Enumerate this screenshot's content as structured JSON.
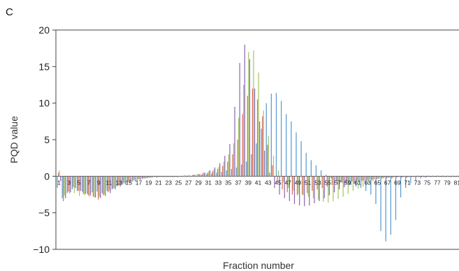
{
  "panel_label": "C",
  "chart_data": {
    "type": "bar",
    "xlabel": "Fraction number",
    "ylabel": "PQD value",
    "ylim": [
      -10,
      20
    ],
    "yticks": [
      -10,
      -5,
      0,
      5,
      10,
      15,
      20
    ],
    "ytick_labels": [
      "−10",
      "−5",
      "0",
      "5",
      "10",
      "15",
      "20"
    ],
    "xtick_labels": [
      "1",
      "3",
      "5",
      "7",
      "9",
      "11",
      "13",
      "15",
      "17",
      "19",
      "21",
      "23",
      "25",
      "27",
      "29",
      "31",
      "33",
      "35",
      "37",
      "39",
      "41",
      "43",
      "45",
      "47",
      "49",
      "51",
      "53",
      "55",
      "57",
      "59",
      "61",
      "63",
      "65",
      "67",
      "69",
      "71",
      "73",
      "75",
      "77",
      "79",
      "81"
    ],
    "x": [
      1,
      2,
      3,
      4,
      5,
      6,
      7,
      8,
      9,
      10,
      11,
      12,
      13,
      14,
      15,
      16,
      17,
      18,
      19,
      20,
      21,
      22,
      23,
      24,
      25,
      26,
      27,
      28,
      29,
      30,
      31,
      32,
      33,
      34,
      35,
      36,
      37,
      38,
      39,
      40,
      41,
      42,
      43,
      44,
      45,
      46,
      47,
      48,
      49,
      50,
      51,
      52,
      53,
      54,
      55,
      56,
      57,
      58,
      59,
      60,
      61,
      62,
      63,
      64,
      65,
      66,
      67,
      68,
      69,
      70,
      71,
      72,
      73,
      74,
      75,
      76,
      77,
      78,
      79,
      80,
      81
    ],
    "series_colors": [
      "#5b9bd0",
      "#e06f5a",
      "#a6c767",
      "#8c6bb5"
    ],
    "series": [
      {
        "values": [
          -1.6,
          -3.0,
          -2.3,
          -1.8,
          -2.0,
          -2.1,
          -2.4,
          -2.2,
          -2.1,
          -2.3,
          -2.0,
          -1.8,
          -1.4,
          -1.2,
          -1.0,
          -0.8,
          -0.6,
          -0.4,
          -0.3,
          -0.2,
          -0.2,
          -0.1,
          -0.1,
          -0.1,
          -0.1,
          -0.1,
          -0.1,
          0.0,
          0.1,
          0.2,
          0.3,
          0.4,
          0.5,
          0.6,
          0.8,
          1.0,
          1.2,
          1.6,
          2.0,
          3.0,
          4.5,
          6.5,
          10.0,
          11.3,
          11.4,
          10.3,
          8.5,
          7.5,
          6.0,
          4.8,
          3.2,
          2.2,
          1.5,
          0.8,
          0.2,
          -0.3,
          -0.6,
          -0.8,
          -1.0,
          -1.2,
          -1.4,
          -1.6,
          -2.0,
          -2.5,
          -3.8,
          -7.5,
          -8.9,
          -8.0,
          -6.0,
          -2.9,
          -1.6,
          -1.0,
          -0.6,
          -0.3,
          -0.2,
          -0.1,
          -0.1,
          -0.1,
          -0.1,
          -0.1,
          -0.1
        ]
      },
      {
        "values": [
          0.5,
          -3.4,
          -2.1,
          -1.5,
          -2.0,
          -2.4,
          -2.6,
          -2.8,
          -3.2,
          -2.6,
          -2.2,
          -1.7,
          -1.3,
          -1.0,
          -0.8,
          -0.6,
          -0.4,
          -0.3,
          -0.2,
          -0.1,
          -0.1,
          -0.1,
          -0.1,
          -0.1,
          -0.1,
          0.0,
          0.1,
          0.2,
          0.3,
          0.4,
          0.5,
          0.7,
          1.0,
          1.4,
          2.0,
          3.0,
          5.0,
          8.5,
          11.0,
          12.0,
          10.5,
          8.2,
          4.3,
          1.5,
          -0.8,
          -1.8,
          -2.2,
          -2.5,
          -2.6,
          -2.5,
          -2.3,
          -2.0,
          -1.8,
          -1.6,
          -1.4,
          -1.2,
          -1.0,
          -0.9,
          -0.8,
          -0.7,
          -0.6,
          -0.6,
          -0.5,
          -0.5,
          -0.4,
          -0.3,
          -0.3,
          -0.3,
          -0.2,
          -0.2,
          -0.2,
          -0.1,
          -0.1,
          -0.1,
          -0.1,
          -0.1,
          -0.1,
          -0.1,
          -0.1,
          -0.1,
          -0.1
        ]
      },
      {
        "values": [
          0.8,
          -2.6,
          -2.4,
          -2.3,
          -2.7,
          -2.6,
          -2.8,
          -2.9,
          -2.8,
          -2.5,
          -2.0,
          -1.6,
          -1.2,
          -0.9,
          -0.7,
          -0.5,
          -0.4,
          -0.3,
          -0.2,
          -0.1,
          -0.1,
          -0.1,
          -0.1,
          -0.1,
          0.0,
          0.1,
          0.1,
          0.2,
          0.3,
          0.5,
          0.7,
          0.9,
          1.3,
          2.0,
          3.0,
          4.5,
          8.0,
          12.5,
          17.0,
          17.2,
          14.2,
          9.0,
          5.5,
          2.8,
          0.8,
          -0.8,
          -1.6,
          -2.0,
          -2.4,
          -2.6,
          -2.8,
          -3.0,
          -3.2,
          -3.5,
          -3.6,
          -3.4,
          -3.1,
          -2.8,
          -2.4,
          -2.0,
          -1.7,
          -1.4,
          -1.0,
          -0.7,
          -0.4,
          -0.3,
          -0.2,
          -0.2,
          -0.1,
          -0.1,
          -0.1,
          -0.1,
          0.1,
          0.1,
          0.1,
          0.1,
          0.1,
          0.1,
          0.1,
          0.1,
          0.1
        ]
      },
      {
        "values": [
          -0.7,
          -3.0,
          -2.2,
          -1.6,
          -2.0,
          -2.4,
          -2.6,
          -2.9,
          -3.0,
          -2.7,
          -2.3,
          -1.8,
          -1.4,
          -1.1,
          -0.9,
          -0.7,
          -0.5,
          -0.3,
          -0.2,
          -0.1,
          -0.1,
          -0.1,
          -0.1,
          -0.1,
          0.0,
          0.1,
          0.1,
          0.2,
          0.3,
          0.5,
          0.8,
          1.2,
          1.8,
          2.8,
          4.4,
          9.5,
          15.5,
          18.0,
          16.0,
          12.0,
          7.5,
          3.5,
          0.5,
          -1.6,
          -2.5,
          -3.0,
          -3.4,
          -3.8,
          -4.0,
          -4.1,
          -4.0,
          -3.7,
          -3.4,
          -3.0,
          -2.6,
          -2.2,
          -1.8,
          -1.5,
          -1.2,
          -1.0,
          -0.8,
          -0.6,
          -0.5,
          -0.4,
          -0.3,
          -0.2,
          -0.2,
          -0.1,
          -0.1,
          -0.1,
          -0.1,
          -0.1,
          -0.1,
          -0.1,
          -0.1,
          -0.1,
          -0.1,
          -0.1,
          -0.1,
          -0.1,
          -0.1
        ]
      }
    ]
  }
}
